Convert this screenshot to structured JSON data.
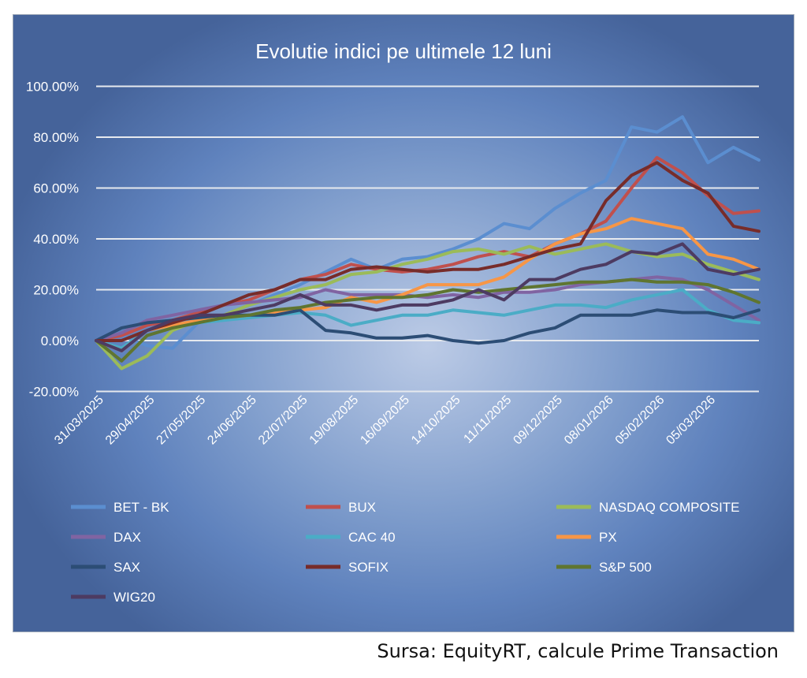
{
  "chart_data": {
    "type": "line",
    "title": "Evolutie indici pe ultimele 12 luni",
    "xlabel": "",
    "ylabel": "",
    "ylim": [
      -20,
      100
    ],
    "y_ticks": [
      "-20.00%",
      "0.00%",
      "20.00%",
      "40.00%",
      "60.00%",
      "80.00%",
      "100.00%"
    ],
    "y_tick_values": [
      -20,
      0,
      20,
      40,
      60,
      80,
      100
    ],
    "x_unit": "weeks since 31/03/2025",
    "x": [
      0,
      2,
      4,
      6,
      8,
      10,
      12,
      14,
      16,
      18,
      20,
      22,
      24,
      26,
      28,
      30,
      32,
      34,
      36,
      38,
      40,
      42,
      44,
      46,
      48,
      50,
      52
    ],
    "x_tick_labels": [
      "31/03/2025",
      "29/04/2025",
      "27/05/2025",
      "24/06/2025",
      "22/07/2025",
      "19/08/2025",
      "16/09/2025",
      "14/10/2025",
      "11/11/2025",
      "09/12/2025",
      "08/01/2026",
      "05/02/2026",
      "05/03/2026"
    ],
    "x_tick_weeks": [
      0,
      4,
      8,
      12,
      16,
      20,
      24,
      28,
      32,
      36,
      40,
      44,
      48
    ],
    "grid": "horizontal",
    "legend_position": "bottom",
    "series": [
      {
        "name": "BET - BK",
        "color": "#5b8ed0",
        "values": [
          0,
          2,
          -2,
          -3,
          7,
          10,
          14,
          18,
          22,
          27,
          32,
          28,
          32,
          33,
          36,
          40,
          46,
          44,
          52,
          58,
          63,
          84,
          82,
          88,
          70,
          76,
          71
        ]
      },
      {
        "name": "BUX",
        "color": "#c0504d",
        "values": [
          0,
          2,
          6,
          8,
          11,
          14,
          16,
          20,
          24,
          26,
          30,
          28,
          27,
          28,
          30,
          33,
          35,
          33,
          38,
          42,
          47,
          60,
          72,
          66,
          57,
          50,
          51
        ]
      },
      {
        "name": "NASDAQ COMPOSITE",
        "color": "#9bbb59",
        "values": [
          0,
          -11,
          -6,
          4,
          8,
          10,
          14,
          17,
          20,
          22,
          26,
          27,
          30,
          32,
          35,
          36,
          34,
          37,
          34,
          36,
          38,
          35,
          33,
          34,
          30,
          27,
          24
        ]
      },
      {
        "name": "DAX",
        "color": "#8064a2",
        "values": [
          0,
          3,
          8,
          10,
          12,
          14,
          15,
          16,
          17,
          20,
          18,
          18,
          18,
          17,
          18,
          17,
          19,
          19,
          20,
          22,
          23,
          24,
          25,
          24,
          20,
          14,
          8
        ]
      },
      {
        "name": "CAC 40",
        "color": "#4bacc6",
        "values": [
          0,
          -3,
          4,
          6,
          7,
          8,
          9,
          10,
          11,
          10,
          6,
          8,
          10,
          10,
          12,
          11,
          10,
          12,
          14,
          14,
          13,
          16,
          18,
          20,
          12,
          8,
          7
        ]
      },
      {
        "name": "PX",
        "color": "#f79646",
        "values": [
          0,
          -4,
          4,
          6,
          8,
          9,
          10,
          11,
          12,
          13,
          17,
          15,
          18,
          22,
          22,
          22,
          25,
          32,
          38,
          42,
          44,
          48,
          46,
          44,
          34,
          32,
          28
        ]
      },
      {
        "name": "SAX",
        "color": "#2c4d75",
        "values": [
          0,
          5,
          7,
          8,
          9,
          10,
          10,
          10,
          12,
          4,
          3,
          1,
          1,
          2,
          0,
          -1,
          0,
          3,
          5,
          10,
          10,
          10,
          12,
          11,
          11,
          9,
          12
        ]
      },
      {
        "name": "SOFIX",
        "color": "#772c2a",
        "values": [
          0,
          0,
          4,
          7,
          10,
          14,
          18,
          20,
          24,
          24,
          28,
          29,
          28,
          27,
          28,
          28,
          30,
          33,
          36,
          38,
          55,
          65,
          70,
          63,
          58,
          45,
          43
        ]
      },
      {
        "name": "S&P 500",
        "color": "#5f7530",
        "values": [
          0,
          -8,
          2,
          5,
          7,
          9,
          10,
          12,
          13,
          15,
          16,
          17,
          17,
          18,
          20,
          19,
          20,
          21,
          22,
          23,
          23,
          24,
          23,
          23,
          22,
          19,
          15
        ]
      },
      {
        "name": "WIG20",
        "color": "#4d3b62",
        "values": [
          0,
          -4,
          4,
          8,
          10,
          10,
          12,
          14,
          18,
          14,
          14,
          12,
          14,
          14,
          16,
          20,
          16,
          24,
          24,
          28,
          30,
          35,
          34,
          38,
          28,
          26,
          28
        ]
      }
    ]
  },
  "source": "Sursa: EquityRT, calcule Prime Transaction"
}
